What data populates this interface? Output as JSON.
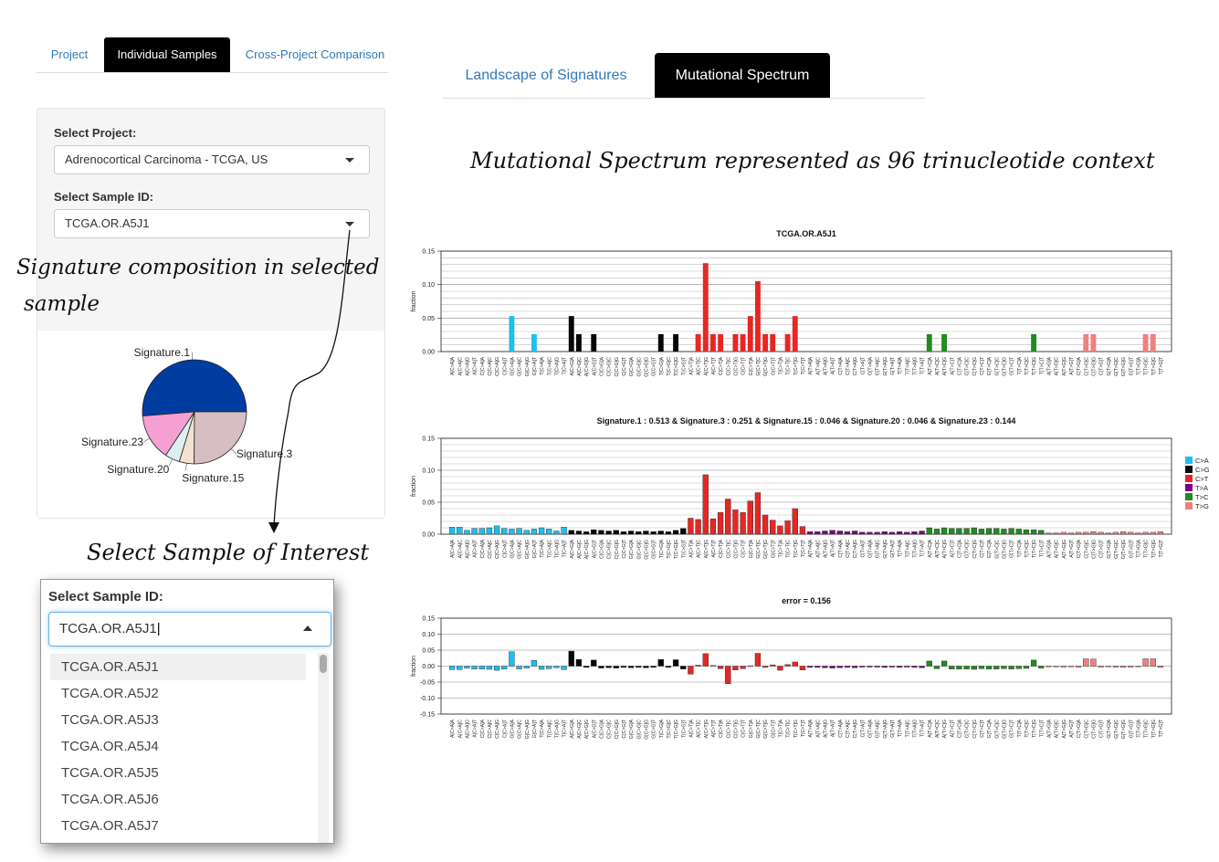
{
  "left_tabs": [
    {
      "label": "Project",
      "active": false
    },
    {
      "label": "Individual Samples",
      "active": true
    },
    {
      "label": "Cross-Project Comparison",
      "active": false
    }
  ],
  "form": {
    "project_label": "Select Project:",
    "project_value": "Adrenocortical Carcinoma - TCGA, US",
    "sample_label": "Select Sample ID:",
    "sample_value": "TCGA.OR.A5J1"
  },
  "right_tabs": [
    {
      "label": "Landscape of Signatures",
      "active": false
    },
    {
      "label": "Mutational Spectrum",
      "active": true
    }
  ],
  "annotations": {
    "spectrum_heading": "Mutational Spectrum represented as 96 trinucleotide context",
    "composition_line1": "Signature composition in selected",
    "composition_line2": "sample",
    "select_interest": "Select Sample of Interest"
  },
  "dropdown": {
    "label": "Select Sample ID:",
    "input_value": "TCGA.OR.A5J1",
    "options": [
      "TCGA.OR.A5J1",
      "TCGA.OR.A5J2",
      "TCGA.OR.A5J3",
      "TCGA.OR.A5J4",
      "TCGA.OR.A5J5",
      "TCGA.OR.A5J6",
      "TCGA.OR.A5J7"
    ]
  },
  "colors": {
    "C>A": "#1EBFF0",
    "C>G": "#050708",
    "C>T": "#E62725",
    "T>A": "#800080",
    "T>C": "#228B22",
    "T>G": "#F08080",
    "tab_link": "#337ab7"
  },
  "chart_data": [
    {
      "type": "pie",
      "categories": [
        "Signature.1",
        "Signature.23",
        "Signature.20",
        "Signature.15",
        "Signature.3"
      ],
      "values": [
        0.513,
        0.144,
        0.046,
        0.046,
        0.251
      ],
      "colors": [
        "#003DA0",
        "#F69FD2",
        "#DDEEEE",
        "#F2E1D3",
        "#D7BEC2"
      ]
    },
    {
      "type": "bar",
      "title": "TCGA.OR.A5J1",
      "ylabel": "fraction",
      "ylim": [
        0,
        0.15
      ],
      "yticks": [
        "0.00",
        "0.05",
        "0.10",
        "0.15"
      ],
      "categories": [
        "A[C>A]A",
        "A[C>A]C",
        "A[C>A]G",
        "A[C>A]T",
        "C[C>A]A",
        "C[C>A]C",
        "C[C>A]G",
        "C[C>A]T",
        "G[C>A]A",
        "G[C>A]C",
        "G[C>A]G",
        "G[C>A]T",
        "T[C>A]A",
        "T[C>A]C",
        "T[C>A]G",
        "T[C>A]T",
        "A[C>G]A",
        "A[C>G]C",
        "A[C>G]G",
        "A[C>G]T",
        "C[C>G]A",
        "C[C>G]C",
        "C[C>G]G",
        "C[C>G]T",
        "G[C>G]A",
        "G[C>G]C",
        "G[C>G]G",
        "G[C>G]T",
        "T[C>G]A",
        "T[C>G]C",
        "T[C>G]G",
        "T[C>G]T",
        "A[C>T]A",
        "A[C>T]C",
        "A[C>T]G",
        "A[C>T]T",
        "C[C>T]A",
        "C[C>T]C",
        "C[C>T]G",
        "C[C>T]T",
        "G[C>T]A",
        "G[C>T]C",
        "G[C>T]G",
        "G[C>T]T",
        "T[C>T]A",
        "T[C>T]C",
        "T[C>T]G",
        "T[C>T]T",
        "A[T>A]A",
        "A[T>A]C",
        "A[T>A]G",
        "A[T>A]T",
        "C[T>A]A",
        "C[T>A]C",
        "C[T>A]G",
        "C[T>A]T",
        "G[T>A]A",
        "G[T>A]C",
        "G[T>A]G",
        "G[T>A]T",
        "T[T>A]A",
        "T[T>A]C",
        "T[T>A]G",
        "T[T>A]T",
        "A[T>C]A",
        "A[T>C]C",
        "A[T>C]G",
        "A[T>C]T",
        "C[T>C]A",
        "C[T>C]C",
        "C[T>C]G",
        "C[T>C]T",
        "G[T>C]A",
        "G[T>C]C",
        "G[T>C]G",
        "G[T>C]T",
        "T[T>C]A",
        "T[T>C]C",
        "T[T>C]G",
        "T[T>C]T",
        "A[T>G]A",
        "A[T>G]C",
        "A[T>G]G",
        "A[T>G]T",
        "C[T>G]A",
        "C[T>G]C",
        "C[T>G]G",
        "C[T>G]T",
        "G[T>G]A",
        "G[T>G]C",
        "G[T>G]G",
        "G[T>G]T",
        "T[T>G]A",
        "T[T>G]C",
        "T[T>G]G",
        "T[T>G]T"
      ],
      "values": [
        0,
        0,
        0,
        0,
        0,
        0,
        0,
        0,
        0.053,
        0,
        0,
        0.026,
        0,
        0,
        0,
        0,
        0.053,
        0.026,
        0,
        0.026,
        0,
        0,
        0,
        0,
        0,
        0,
        0,
        0,
        0.026,
        0,
        0.026,
        0,
        0,
        0.026,
        0.132,
        0.026,
        0.026,
        0,
        0.026,
        0.026,
        0.053,
        0.105,
        0.026,
        0.026,
        0,
        0.026,
        0.053,
        0,
        0,
        0,
        0,
        0,
        0,
        0,
        0,
        0,
        0,
        0,
        0,
        0,
        0,
        0,
        0,
        0,
        0.026,
        0,
        0.026,
        0,
        0,
        0,
        0,
        0,
        0,
        0,
        0,
        0,
        0,
        0,
        0.026,
        0,
        0,
        0,
        0,
        0,
        0,
        0.026,
        0.026,
        0,
        0,
        0,
        0,
        0,
        0,
        0.026,
        0.026,
        0
      ]
    },
    {
      "type": "bar",
      "title": "Signature.1 : 0.513 & Signature.3 : 0.251 & Signature.15 : 0.046 & Signature.20 : 0.046 & Signature.23 : 0.144",
      "ylabel": "fraction",
      "ylim": [
        0,
        0.15
      ],
      "yticks": [
        "0.00",
        "0.05",
        "0.10",
        "0.15"
      ],
      "legend": {
        "placement": "right",
        "entries": [
          "C>A",
          "C>G",
          "C>T",
          "T>A",
          "T>C",
          "T>G"
        ]
      },
      "values": [
        0.011,
        0.011,
        0.006,
        0.009,
        0.009,
        0.01,
        0.013,
        0.009,
        0.008,
        0.009,
        0.006,
        0.008,
        0.01,
        0.008,
        0.005,
        0.011,
        0.006,
        0.005,
        0.004,
        0.007,
        0.006,
        0.005,
        0.006,
        0.004,
        0.005,
        0.004,
        0.005,
        0.004,
        0.005,
        0.004,
        0.006,
        0.009,
        0.025,
        0.023,
        0.093,
        0.024,
        0.034,
        0.055,
        0.038,
        0.034,
        0.052,
        0.065,
        0.03,
        0.022,
        0.013,
        0.021,
        0.04,
        0.012,
        0.004,
        0.004,
        0.005,
        0.006,
        0.005,
        0.004,
        0.005,
        0.003,
        0.003,
        0.003,
        0.004,
        0.003,
        0.004,
        0.003,
        0.004,
        0.005,
        0.01,
        0.008,
        0.01,
        0.009,
        0.009,
        0.009,
        0.01,
        0.008,
        0.009,
        0.009,
        0.008,
        0.009,
        0.008,
        0.007,
        0.007,
        0.006,
        0.002,
        0.002,
        0.003,
        0.002,
        0.003,
        0.003,
        0.004,
        0.003,
        0.002,
        0.003,
        0.004,
        0.003,
        0.002,
        0.003,
        0.003,
        0.004
      ]
    },
    {
      "type": "bar",
      "title": "error = 0.156",
      "ylabel": "fraction",
      "ylim": [
        -0.15,
        0.15
      ],
      "yticks": [
        "-0.15",
        "-0.10",
        "-0.05",
        "0.00",
        "0.05",
        "0.10",
        "0.15"
      ],
      "values": [
        -0.011,
        -0.011,
        -0.006,
        -0.009,
        -0.009,
        -0.01,
        -0.013,
        -0.009,
        0.045,
        -0.009,
        -0.006,
        0.018,
        -0.01,
        -0.008,
        -0.005,
        -0.011,
        0.047,
        0.021,
        -0.004,
        0.019,
        -0.006,
        -0.005,
        -0.006,
        -0.004,
        -0.005,
        -0.004,
        -0.005,
        -0.004,
        0.021,
        -0.004,
        0.02,
        -0.009,
        -0.025,
        0.003,
        0.039,
        0.002,
        -0.008,
        -0.055,
        -0.012,
        -0.008,
        0.001,
        0.04,
        -0.004,
        0.004,
        -0.013,
        0.005,
        0.013,
        -0.012,
        -0.004,
        -0.004,
        -0.005,
        -0.006,
        -0.005,
        -0.004,
        -0.005,
        -0.003,
        -0.003,
        -0.003,
        -0.004,
        -0.003,
        -0.004,
        -0.003,
        -0.004,
        -0.005,
        0.016,
        -0.008,
        0.016,
        -0.009,
        -0.009,
        -0.009,
        -0.01,
        -0.008,
        -0.009,
        -0.009,
        -0.008,
        -0.009,
        -0.008,
        -0.007,
        0.019,
        -0.006,
        -0.002,
        -0.002,
        -0.003,
        -0.002,
        -0.003,
        0.023,
        0.022,
        -0.003,
        -0.002,
        -0.003,
        -0.004,
        -0.003,
        -0.002,
        0.023,
        0.023,
        -0.004
      ]
    }
  ]
}
